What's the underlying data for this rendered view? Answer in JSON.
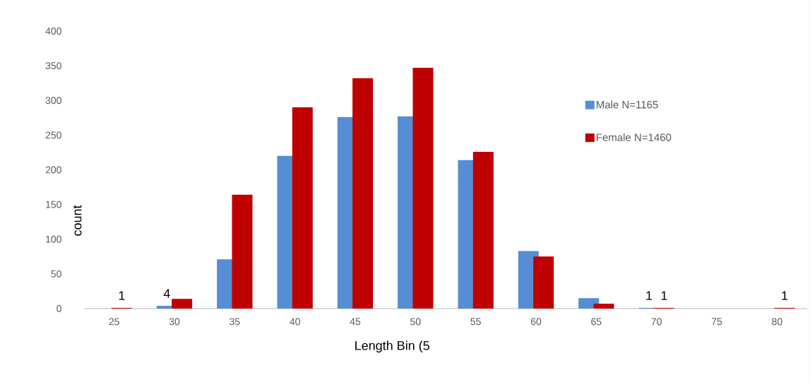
{
  "chart_data": {
    "type": "bar",
    "xlabel": "Length Bin (5",
    "ylabel": "count",
    "categories": [
      "25",
      "30",
      "35",
      "40",
      "45",
      "50",
      "55",
      "60",
      "65",
      "70",
      "75",
      "80"
    ],
    "series": [
      {
        "name": "Male N=1165",
        "color": "#558ed5",
        "values": [
          0,
          4,
          71,
          220,
          276,
          277,
          214,
          83,
          15,
          1,
          0,
          0
        ],
        "value_labels": [
          null,
          "4",
          null,
          null,
          null,
          null,
          null,
          null,
          null,
          "1",
          null,
          null
        ]
      },
      {
        "name": "Female N=1460",
        "color": "#c00000",
        "values": [
          1,
          14,
          164,
          290,
          332,
          347,
          226,
          75,
          7,
          1,
          0,
          1
        ],
        "value_labels": [
          "1",
          null,
          null,
          null,
          null,
          null,
          null,
          null,
          null,
          "1",
          null,
          "1"
        ]
      }
    ],
    "ylim": [
      0,
      400
    ],
    "yticks": [
      0,
      50,
      100,
      150,
      200,
      250,
      300,
      350,
      400
    ],
    "grid": false,
    "legend": "right"
  }
}
